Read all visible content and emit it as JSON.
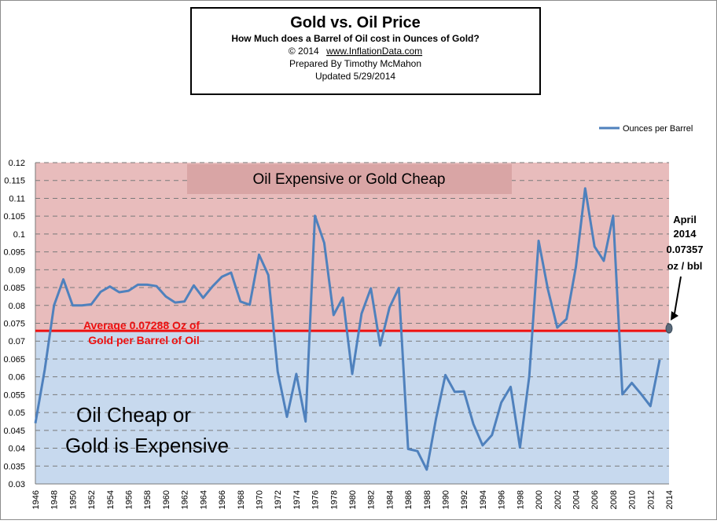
{
  "chart_data": {
    "type": "line",
    "title": "Gold vs. Oil Price",
    "subtitle": "How Much does a Barrel of Oil cost in Ounces of Gold?",
    "copyright": "© 2014",
    "website": "www.InflationData.com",
    "prepared_by": "Prepared  By Timothy McMahon",
    "updated": "Updated  5/29/2014",
    "legend_label": "Ounces per Barrel",
    "legend_position": "top-right",
    "upper_zone_label": "Oil  Expensive or Gold Cheap",
    "lower_zone_label_line1": "Oil Cheap or",
    "lower_zone_label_line2": "Gold is Expensive",
    "average_label_line1": "Average 0.07288 Oz of",
    "average_label_line2": "Gold per Barrel of Oil",
    "average_value": 0.07288,
    "callout_lines": [
      "April",
      "2014",
      "0.07357",
      "oz / bbl"
    ],
    "callout_point": {
      "x": 2014,
      "y": 0.07357
    },
    "ylim": [
      0.03,
      0.12
    ],
    "y_ticks": [
      0.03,
      0.035,
      0.04,
      0.045,
      0.05,
      0.055,
      0.06,
      0.065,
      0.07,
      0.075,
      0.08,
      0.085,
      0.09,
      0.095,
      0.1,
      0.105,
      0.11,
      0.115,
      0.12
    ],
    "y_tick_labels": [
      "0.03",
      "0.035",
      "0.04",
      "0.045",
      "0.05",
      "0.055",
      "0.06",
      "0.065",
      "0.07",
      "0.075",
      "0.08",
      "0.085",
      "0.09",
      "0.095",
      "0.1",
      "0.105",
      "0.11",
      "0.115",
      "0.12"
    ],
    "xlim": [
      1946,
      2014
    ],
    "x_ticks": [
      "1946",
      "1948",
      "1950",
      "1952",
      "1954",
      "1956",
      "1958",
      "1960",
      "1962",
      "1964",
      "1966",
      "1968",
      "1970",
      "1972",
      "1974",
      "1976",
      "1978",
      "1980",
      "1982",
      "1984",
      "1986",
      "1988",
      "1990",
      "1992",
      "1994",
      "1996",
      "1998",
      "2000",
      "2002",
      "2004",
      "2006",
      "2008",
      "2010",
      "2012",
      "2014"
    ],
    "grid": true,
    "colors": {
      "upper_zone": "#e8bcbc",
      "lower_zone": "#c7d9ee",
      "series": "#4f81bd",
      "average_line": "#ee1111",
      "zone_label_bg": "#d9a5a5"
    },
    "series": [
      {
        "name": "Ounces per Barrel",
        "x": [
          1946,
          1947,
          1948,
          1949,
          1950,
          1951,
          1952,
          1953,
          1954,
          1955,
          1956,
          1957,
          1958,
          1959,
          1960,
          1961,
          1962,
          1963,
          1964,
          1965,
          1966,
          1967,
          1968,
          1969,
          1970,
          1971,
          1972,
          1973,
          1974,
          1975,
          1976,
          1977,
          1978,
          1979,
          1980,
          1981,
          1982,
          1983,
          1984,
          1985,
          1986,
          1987,
          1988,
          1989,
          1990,
          1991,
          1992,
          1993,
          1994,
          1995,
          1996,
          1997,
          1998,
          1999,
          2000,
          2001,
          2002,
          2003,
          2004,
          2005,
          2006,
          2007,
          2008,
          2009,
          2010,
          2011,
          2012,
          2013
        ],
        "y": [
          0.047,
          0.062,
          0.08,
          0.0873,
          0.08,
          0.08,
          0.0803,
          0.0838,
          0.0853,
          0.0837,
          0.0841,
          0.0858,
          0.0858,
          0.0854,
          0.0825,
          0.0808,
          0.0811,
          0.0856,
          0.0821,
          0.0853,
          0.088,
          0.0892,
          0.0811,
          0.0802,
          0.0942,
          0.0885,
          0.0615,
          0.0488,
          0.0608,
          0.0475,
          0.1051,
          0.0975,
          0.0773,
          0.0822,
          0.0608,
          0.0777,
          0.0848,
          0.0688,
          0.0794,
          0.0849,
          0.0398,
          0.0392,
          0.034,
          0.0484,
          0.0605,
          0.0558,
          0.0559,
          0.0468,
          0.0408,
          0.0437,
          0.0528,
          0.0572,
          0.0402,
          0.0601,
          0.0981,
          0.0845,
          0.0738,
          0.0762,
          0.0908,
          0.1128,
          0.0965,
          0.0925,
          0.1051,
          0.0551,
          0.0583,
          0.0552,
          0.0518,
          0.0648
        ]
      }
    ]
  }
}
